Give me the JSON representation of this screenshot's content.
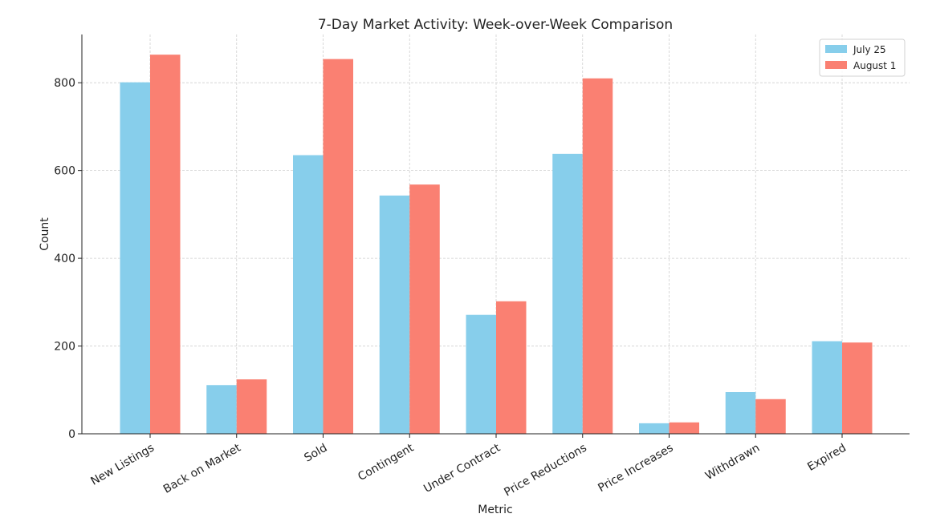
{
  "chart_data": {
    "type": "bar",
    "title": "7-Day Market Activity: Week-over-Week Comparison",
    "xlabel": "Metric",
    "ylabel": "Count",
    "ylim": [
      0,
      910
    ],
    "yticks": [
      0,
      200,
      400,
      600,
      800
    ],
    "grid": true,
    "legend_position": "top-right",
    "categories": [
      "New Listings",
      "Back on Market",
      "Sold",
      "Contingent",
      "Under Contract",
      "Price Reductions",
      "Price Increases",
      "Withdrawn",
      "Expired"
    ],
    "series": [
      {
        "name": "July 25",
        "color": "#87ceeb",
        "values": [
          801,
          111,
          635,
          543,
          271,
          638,
          24,
          95,
          211
        ]
      },
      {
        "name": "August 1",
        "color": "#fa8072",
        "values": [
          864,
          124,
          854,
          568,
          302,
          810,
          26,
          79,
          208
        ]
      }
    ]
  }
}
